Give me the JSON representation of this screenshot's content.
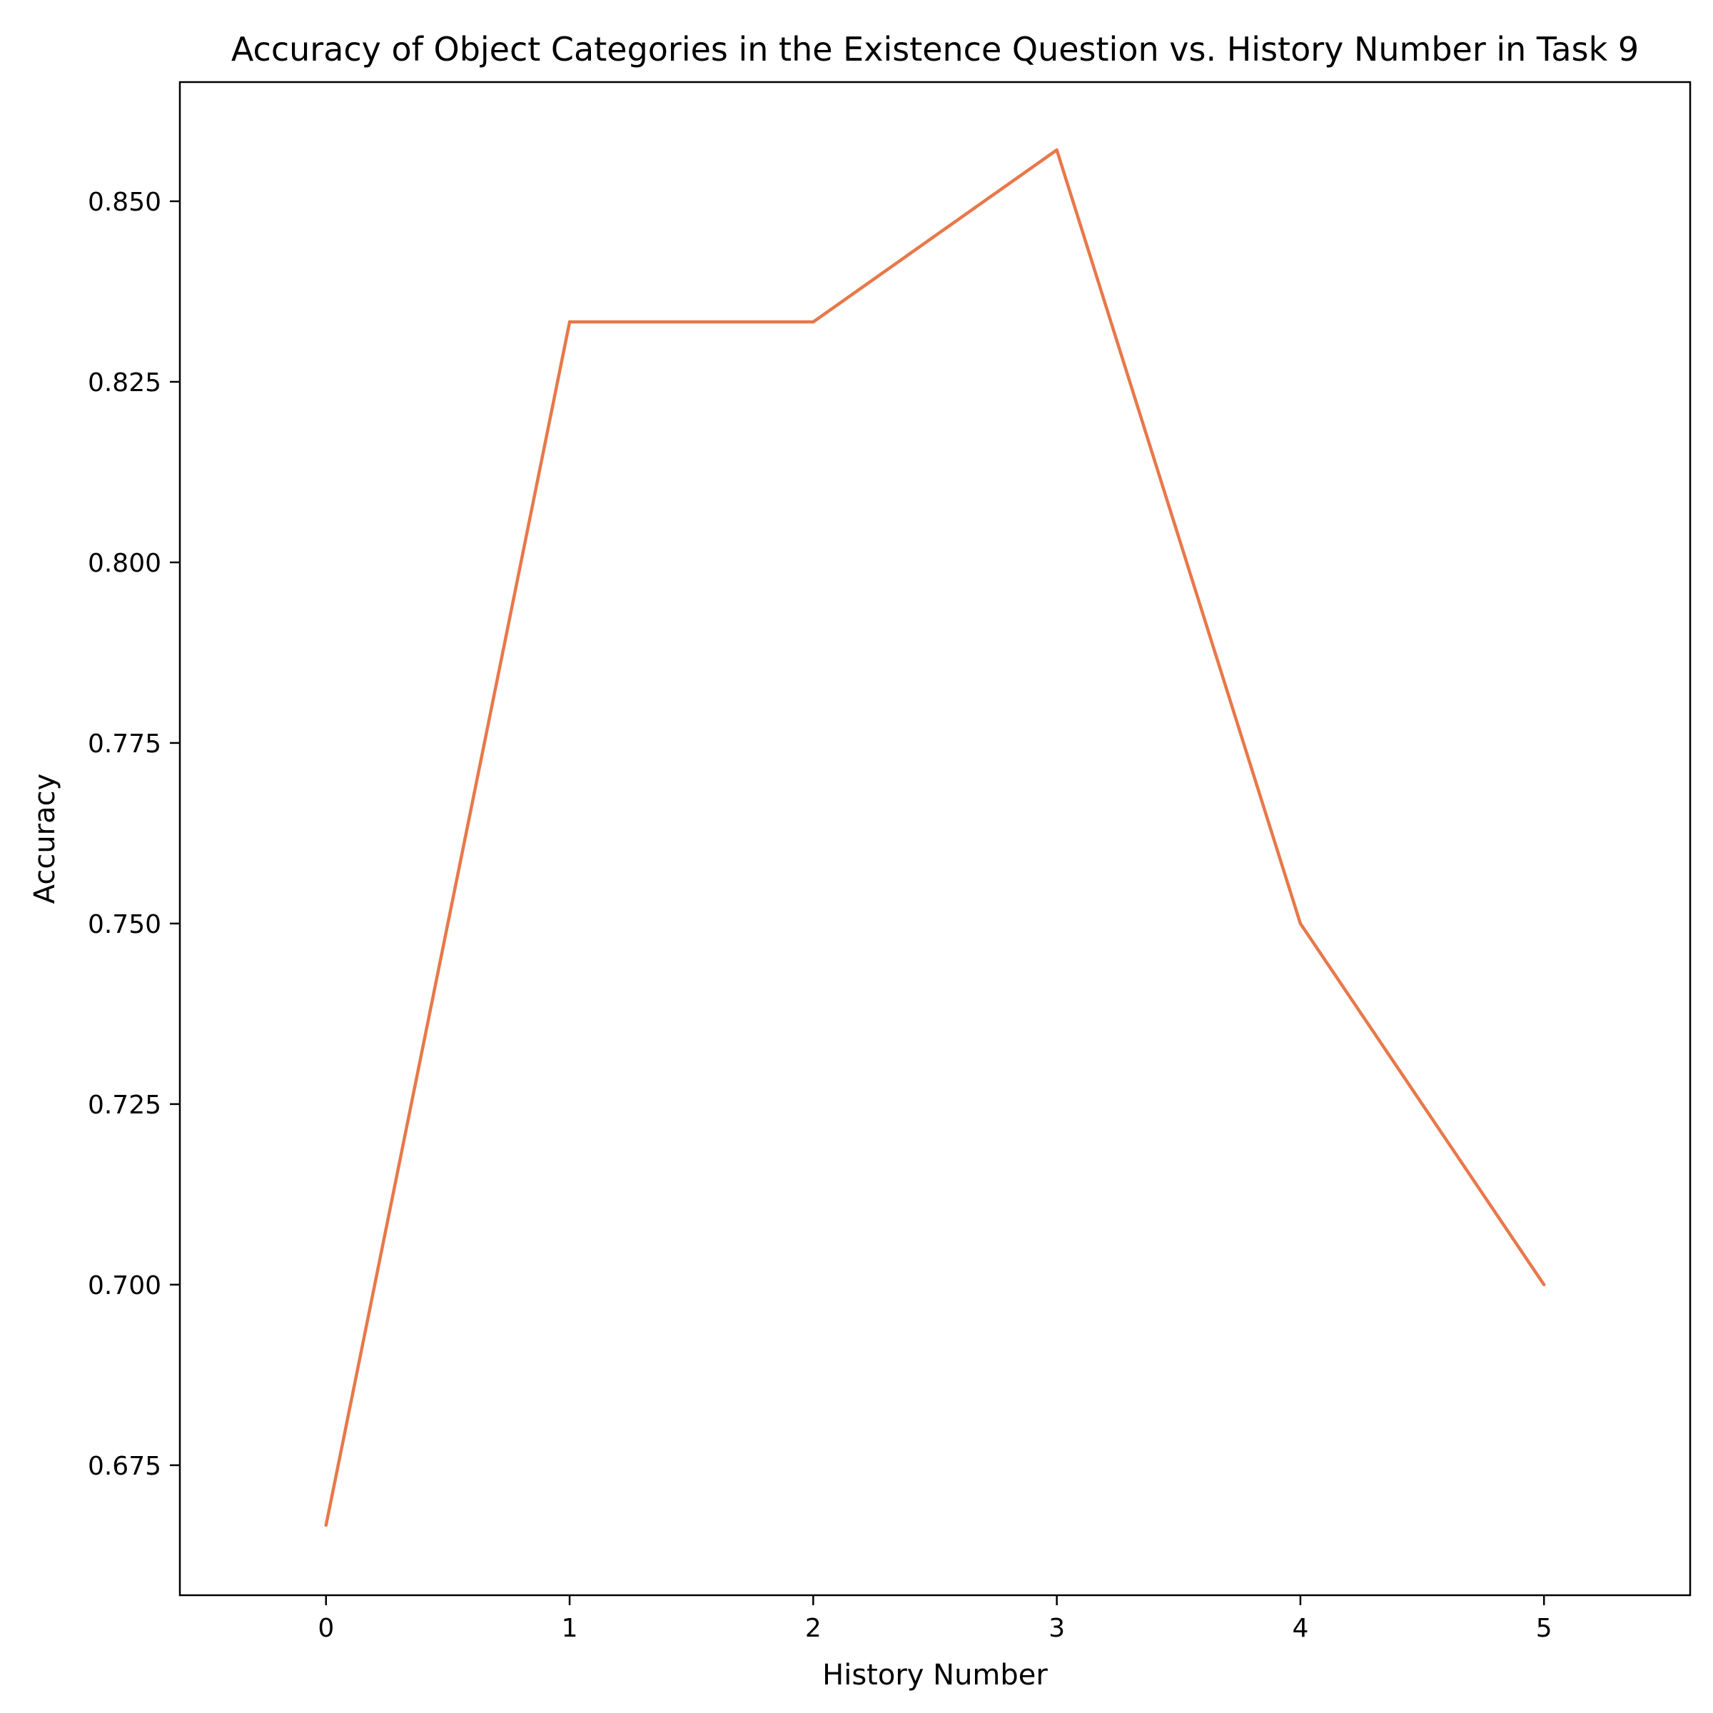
{
  "chart_data": {
    "type": "line",
    "title": "Accuracy of Object Categories in the Existence Question vs. History Number in Task 9",
    "xlabel": "History Number",
    "ylabel": "Accuracy",
    "x": [
      0,
      1,
      2,
      3,
      4,
      5
    ],
    "series": [
      {
        "values": [
          0.6667,
          0.8333,
          0.8333,
          0.8571,
          0.75,
          0.7
        ],
        "color": "#e8784a"
      }
    ],
    "xlim": [
      -0.6,
      5.6
    ],
    "ylim": [
      0.657,
      0.8665
    ],
    "xticks": [
      0,
      1,
      2,
      3,
      4,
      5
    ],
    "xtick_labels": [
      "0",
      "1",
      "2",
      "3",
      "4",
      "5"
    ],
    "yticks": [
      0.675,
      0.7,
      0.725,
      0.75,
      0.775,
      0.8,
      0.825,
      0.85
    ],
    "ytick_labels": [
      "0.675",
      "0.700",
      "0.725",
      "0.750",
      "0.775",
      "0.800",
      "0.825",
      "0.850"
    ],
    "grid": false,
    "legend": "none"
  }
}
